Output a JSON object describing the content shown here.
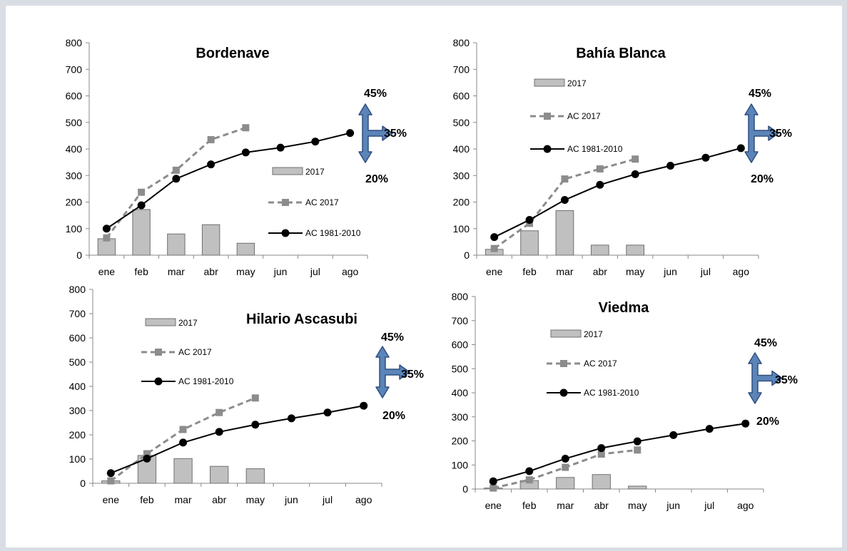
{
  "chart_data": [
    {
      "type": "bar",
      "title": "Bordenave",
      "categories": [
        "ene",
        "feb",
        "mar",
        "abr",
        "may",
        "jun",
        "jul",
        "ago"
      ],
      "ylim": [
        0,
        800
      ],
      "yticks": [
        "0",
        "100",
        "200",
        "300",
        "400",
        "500",
        "600",
        "700",
        "800"
      ],
      "grid": false,
      "series": [
        {
          "name": "2017",
          "type": "bar",
          "values": [
            62,
            172,
            80,
            115,
            45,
            null,
            null,
            null
          ]
        },
        {
          "name": "AC 2017",
          "type": "line",
          "style": "dashed-square",
          "values": [
            65,
            237,
            320,
            435,
            480,
            null,
            null,
            null
          ]
        },
        {
          "name": "AC 1981-2010",
          "type": "line",
          "style": "solid-circle",
          "values": [
            100,
            188,
            288,
            342,
            387,
            405,
            428,
            460
          ]
        }
      ],
      "annotations": {
        "top": "45%",
        "middle": "35%",
        "bottom": "20%"
      }
    },
    {
      "type": "bar",
      "title": "Bahía Blanca",
      "categories": [
        "ene",
        "feb",
        "mar",
        "abr",
        "may",
        "jun",
        "jul",
        "ago"
      ],
      "ylim": [
        0,
        800
      ],
      "yticks": [
        "0",
        "100",
        "200",
        "300",
        "400",
        "500",
        "600",
        "700",
        "800"
      ],
      "grid": false,
      "series": [
        {
          "name": "2017",
          "type": "bar",
          "values": [
            22,
            92,
            168,
            38,
            38,
            null,
            null,
            null
          ]
        },
        {
          "name": "AC 2017",
          "type": "line",
          "style": "dashed-square",
          "values": [
            25,
            120,
            287,
            325,
            362,
            null,
            null,
            null
          ]
        },
        {
          "name": "AC 1981-2010",
          "type": "line",
          "style": "solid-circle",
          "values": [
            68,
            133,
            208,
            265,
            305,
            337,
            367,
            403
          ]
        }
      ],
      "annotations": {
        "top": "45%",
        "middle": "35%",
        "bottom": "20%"
      }
    },
    {
      "type": "bar",
      "title": "Hilario Ascasubi",
      "categories": [
        "ene",
        "feb",
        "mar",
        "abr",
        "may",
        "jun",
        "jul",
        "ago"
      ],
      "ylim": [
        0,
        800
      ],
      "yticks": [
        "0",
        "100",
        "200",
        "300",
        "400",
        "500",
        "600",
        "700",
        "800"
      ],
      "grid": false,
      "series": [
        {
          "name": "2017",
          "type": "bar",
          "values": [
            10,
            115,
            102,
            70,
            60,
            null,
            null,
            null
          ]
        },
        {
          "name": "AC 2017",
          "type": "line",
          "style": "dashed-square",
          "values": [
            10,
            122,
            222,
            292,
            352,
            null,
            null,
            null
          ]
        },
        {
          "name": "AC 1981-2010",
          "type": "line",
          "style": "solid-circle",
          "values": [
            42,
            102,
            168,
            212,
            242,
            268,
            292,
            320
          ]
        }
      ],
      "annotations": {
        "top": "45%",
        "middle": "35%",
        "bottom": "20%"
      }
    },
    {
      "type": "bar",
      "title": "Viedma",
      "categories": [
        "ene",
        "feb",
        "mar",
        "abr",
        "may",
        "jun",
        "jul",
        "ago"
      ],
      "ylim": [
        0,
        800
      ],
      "yticks": [
        "0",
        "100",
        "200",
        "300",
        "400",
        "500",
        "600",
        "700",
        "800"
      ],
      "grid": false,
      "series": [
        {
          "name": "2017",
          "type": "bar",
          "values": [
            4,
            35,
            48,
            60,
            12,
            null,
            null,
            null
          ]
        },
        {
          "name": "AC 2017",
          "type": "line",
          "style": "dashed-square",
          "values": [
            4,
            38,
            90,
            145,
            162,
            null,
            null,
            null
          ]
        },
        {
          "name": "AC 1981-2010",
          "type": "line",
          "style": "solid-circle",
          "values": [
            32,
            74,
            126,
            170,
            198,
            224,
            250,
            272
          ]
        }
      ],
      "annotations": {
        "top": "45%",
        "middle": "35%",
        "bottom": "20%"
      }
    }
  ],
  "colors": {
    "bar_fill": "#c0c0c0",
    "bar_stroke": "#707070",
    "ac2017": "#8c8c8c",
    "climatology": "#000000",
    "arrow_fill": "#5b84b8",
    "arrow_stroke": "#2f4f7f",
    "axis": "#888888"
  }
}
